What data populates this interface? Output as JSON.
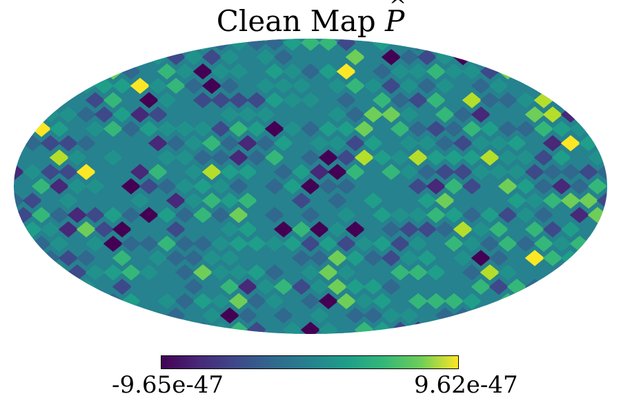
{
  "title": {
    "text": "Clean Map ",
    "symbol": "P"
  },
  "colorbar": {
    "min_label": "-9.65e-47",
    "max_label": "9.62e-47",
    "colormap": "viridis"
  },
  "chart_data": {
    "type": "heatmap",
    "projection": "mollweide",
    "title": "Clean Map P̂",
    "value_range": [
      -9.65e-47,
      9.62e-47
    ],
    "colors": {
      "low": "#440154",
      "mid_low": "#31688e",
      "mid": "#21918c",
      "mid_high": "#35b779",
      "high": "#fde725"
    }
  }
}
